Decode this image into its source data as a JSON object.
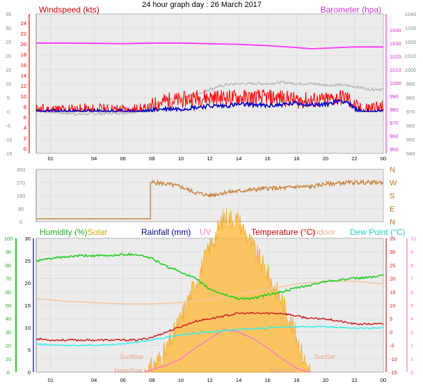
{
  "title": "24 hour graph day : 26 March 2017",
  "colors": {
    "windspeed": "#ff0000",
    "windavg": "#0000c8",
    "gust_shadow": "#b4b4b4",
    "barometer": "#ff33ff",
    "wind_dir": "#cc8844",
    "humidity": "#22cc22",
    "solar": "#ffb832",
    "rainfall": "#00008b",
    "uv": "#ff77cc",
    "temperature": "#cc2222",
    "indoor": "#f5c6a0",
    "dewpoint": "#33eeee",
    "panel_bg": "#ececec",
    "grid": "#d6d6d6"
  },
  "x_ticks": [
    "01",
    "04",
    "06",
    "08",
    "10",
    "12",
    "14",
    "16",
    "18",
    "20",
    "22",
    "00"
  ],
  "panel1": {
    "left_title": "Windspeed (kts)",
    "right_title": "Barometer (hpa)",
    "left_ticks": [
      "35",
      "30",
      "25",
      "20",
      "15",
      "10",
      "5",
      "0",
      "-5",
      "-10",
      "-15"
    ],
    "left_red_ticks": [
      "24",
      "22",
      "20",
      "18",
      "16",
      "14",
      "12",
      "10",
      "8",
      "6",
      "4",
      "2",
      "0"
    ],
    "right_ticks": [
      "1040",
      "1030",
      "1020",
      "1010",
      "1000",
      "990",
      "980",
      "970",
      "960",
      "950",
      "940"
    ],
    "right_magenta_ticks": [
      "1040",
      "1030",
      "1020",
      "1010",
      "1000",
      "990",
      "980",
      "970",
      "960",
      "950"
    ]
  },
  "panel2": {
    "left_ticks": [
      "360",
      "270",
      "180",
      "90",
      "0"
    ],
    "right_labels": [
      "N",
      "W",
      "S",
      "E",
      "N"
    ]
  },
  "panel3": {
    "labels": {
      "humidity": "Humidity (%)",
      "solar": "Solar",
      "rainfall": "Rainfall (mm)",
      "uv": "UV",
      "temperature": "Temperature (°C)",
      "indoor": "Indoor",
      "dewpoint": "Dew Point (°C)"
    },
    "humidity_ticks": [
      "100",
      "90",
      "80",
      "70",
      "60",
      "50",
      "40",
      "30",
      "20",
      "10",
      "0"
    ],
    "rain_ticks": [
      "30",
      "25",
      "20",
      "15",
      "10",
      "5",
      "0"
    ],
    "temp_ticks": [
      "35",
      "30",
      "25",
      "20",
      "15",
      "10",
      "5",
      "0",
      "-5",
      "-10",
      "-15"
    ],
    "uv_ticks": [
      "10",
      "9",
      "8",
      "7",
      "6",
      "5",
      "4",
      "3",
      "2",
      "1",
      "0"
    ],
    "markers": {
      "sunrise": "SunRise",
      "sunset": "SunSet",
      "moonrise": "MoonRise",
      "moonset": "MoonSet"
    }
  },
  "chart_data": [
    {
      "type": "line",
      "title": "24 hour graph day : 26 March 2017",
      "x_unit": "hours from 00:00 (26 March 2017)",
      "series": [
        {
          "name": "Windspeed (kts)",
          "x": [
            0,
            2,
            4,
            6,
            7.8,
            8,
            9,
            10,
            11,
            12,
            13,
            14,
            15,
            16,
            17,
            18,
            19,
            20,
            21,
            21.5,
            22,
            22.5,
            23,
            24
          ],
          "y": [
            0,
            0,
            0,
            0,
            0,
            2,
            4,
            4,
            5,
            5,
            5,
            5,
            5,
            5,
            5,
            4,
            4,
            4,
            5,
            5,
            2,
            0,
            1,
            1
          ]
        },
        {
          "name": "Average speed (kts)",
          "x": [
            0,
            2,
            4,
            6,
            7.8,
            8,
            9,
            10,
            11,
            12,
            13,
            14,
            15,
            16,
            17,
            18,
            19,
            20,
            21,
            21.5,
            22,
            22.5,
            23,
            24
          ],
          "y": [
            0,
            0,
            0,
            0,
            0,
            0.5,
            1,
            1,
            1.5,
            2,
            2,
            2.5,
            2.5,
            2,
            2.5,
            3,
            2.5,
            2.5,
            4,
            3.5,
            1,
            0,
            0,
            0
          ]
        },
        {
          "name": "Gust trace",
          "x": [
            0,
            3,
            6,
            7.5,
            8.5,
            9,
            10,
            11,
            12,
            13,
            14,
            15,
            16,
            17,
            18,
            19,
            20,
            21,
            22,
            23,
            24
          ],
          "y": [
            0.3,
            -1,
            -0.5,
            0.2,
            3,
            4,
            5,
            6,
            8,
            9.5,
            10,
            10,
            10,
            10.5,
            10,
            10,
            9.5,
            9.5,
            9,
            8,
            8
          ]
        },
        {
          "name": "Barometer (hpa)",
          "x": [
            0,
            2,
            4,
            6,
            8,
            10,
            12,
            14,
            16,
            18,
            19,
            20,
            22,
            24
          ],
          "y": [
            1022,
            1022,
            1021.8,
            1021.5,
            1022,
            1022,
            1021.5,
            1021,
            1020,
            1018.5,
            1017.5,
            1018,
            1019,
            1019
          ]
        }
      ],
      "left_axis": {
        "label": "Windspeed (kts)",
        "range": [
          -15,
          35
        ]
      },
      "right_axis": {
        "label": "Barometer (hpa)",
        "range": [
          935,
          1045
        ]
      }
    },
    {
      "type": "line",
      "series": [
        {
          "name": "Wind direction",
          "x": [
            0,
            7.9,
            8,
            9,
            10,
            11,
            12,
            13,
            14,
            15,
            16,
            17,
            18,
            19,
            20,
            22,
            24
          ],
          "y": [
            20,
            20,
            270,
            260,
            240,
            200,
            180,
            200,
            210,
            220,
            230,
            230,
            240,
            240,
            260,
            270,
            270
          ]
        }
      ],
      "left_axis": {
        "range": [
          0,
          360
        ]
      }
    },
    {
      "type": "line",
      "series": [
        {
          "name": "Humidity (%)",
          "x": [
            0,
            1,
            2,
            3,
            4,
            5,
            6,
            7,
            8,
            9,
            10,
            11,
            12,
            13,
            14,
            15,
            16,
            17,
            18,
            19,
            20,
            21,
            22,
            23,
            24
          ],
          "y": [
            83,
            85,
            86,
            87,
            87,
            87,
            88,
            88,
            85,
            79,
            75,
            70,
            62,
            58,
            55,
            55,
            58,
            60,
            63,
            65,
            68,
            69,
            70,
            71,
            72
          ]
        },
        {
          "name": "Temperature (°C)",
          "x": [
            0,
            1,
            2,
            3,
            4,
            5,
            6,
            7,
            8,
            9,
            10,
            11,
            12,
            13,
            14,
            15,
            16,
            17,
            18,
            19,
            20,
            21,
            22,
            23,
            24
          ],
          "y": [
            -2.5,
            -3,
            -3,
            -3,
            -3,
            -3,
            -3,
            -3,
            -2,
            0,
            2,
            4,
            5,
            6,
            7,
            7,
            7,
            7,
            6,
            5,
            5,
            4,
            3,
            3,
            3
          ]
        },
        {
          "name": "Indoor",
          "x": [
            0,
            2,
            4,
            6,
            8,
            10,
            12,
            14,
            16,
            18,
            20,
            22,
            24
          ],
          "y": [
            12.5,
            11.5,
            11,
            10.5,
            10.5,
            11,
            12,
            14,
            16,
            18,
            19,
            19,
            18
          ]
        },
        {
          "name": "Dew Point (°C)",
          "x": [
            0,
            2,
            4,
            6,
            8,
            10,
            12,
            14,
            16,
            18,
            20,
            22,
            24
          ],
          "y": [
            -4.5,
            -5,
            -5,
            -4.5,
            -3,
            -1,
            0,
            1,
            1.5,
            2,
            2,
            1.5,
            1.5
          ]
        },
        {
          "name": "Solar",
          "x": [
            7.5,
            8,
            9,
            10,
            11,
            12,
            13,
            14,
            15,
            16,
            17,
            18,
            18.5,
            19
          ],
          "y": [
            0,
            1,
            5,
            12,
            20,
            28,
            35,
            34,
            28,
            22,
            16,
            8,
            3,
            0
          ]
        },
        {
          "name": "UV",
          "x": [
            7.5,
            8,
            9,
            10,
            11,
            12,
            13,
            14,
            15,
            16,
            17,
            18,
            18.5,
            19
          ],
          "y": [
            0,
            0.2,
            0.5,
            1,
            1.8,
            2.5,
            3.2,
            3,
            2.5,
            1.8,
            1,
            0.3,
            0.1,
            0
          ]
        }
      ],
      "humidity_axis": {
        "label": "Humidity (%)",
        "range": [
          0,
          100
        ]
      },
      "rain_axis": {
        "label": "Rainfall (mm)",
        "range": [
          0,
          30
        ]
      },
      "temperature_axis": {
        "label": "Temperature (°C)",
        "range": [
          -15,
          35
        ]
      },
      "uv_axis": {
        "label": "UV",
        "range": [
          0,
          10
        ]
      }
    }
  ]
}
